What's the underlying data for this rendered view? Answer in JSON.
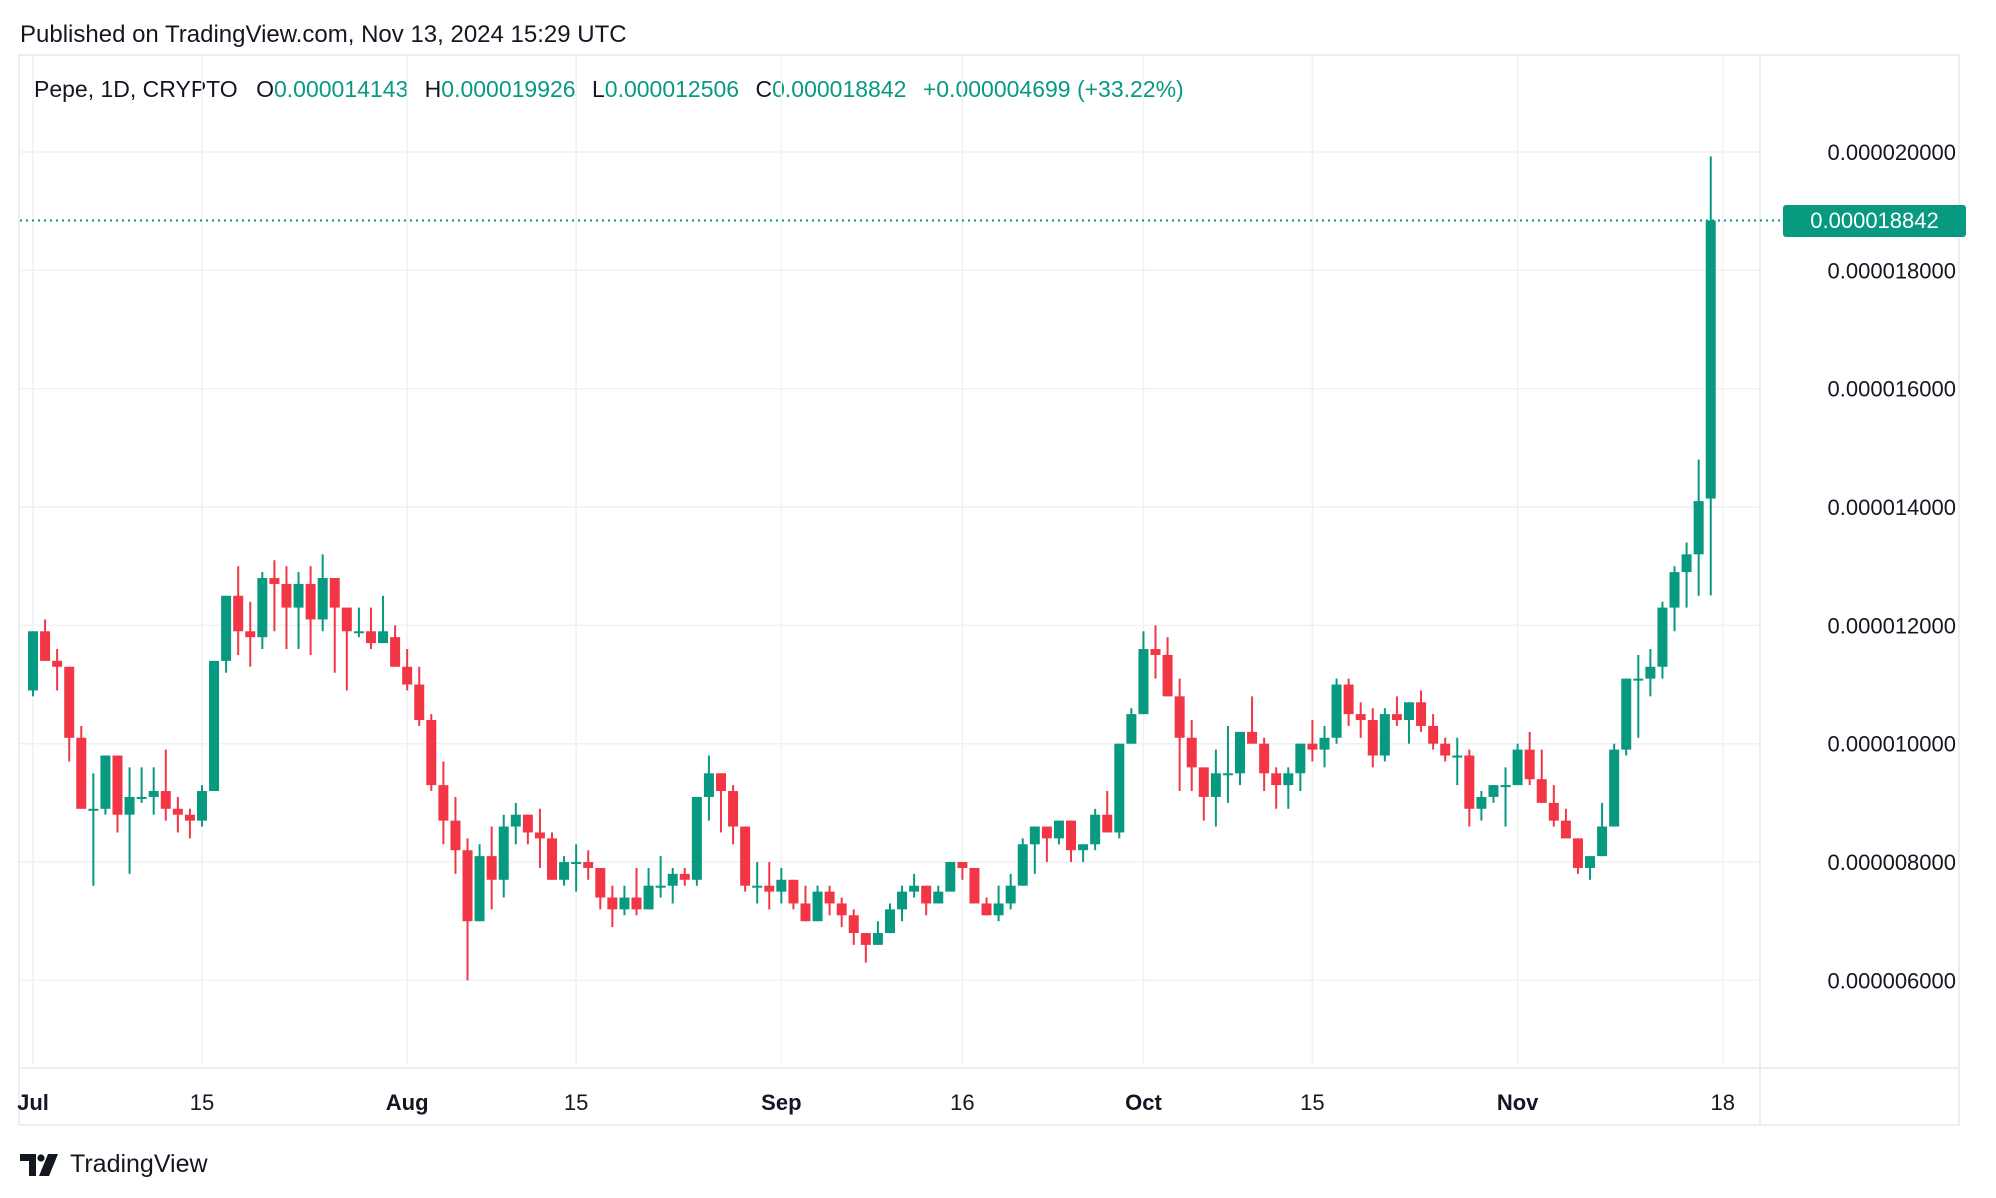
{
  "header": {
    "published": "Published on TradingView.com, Nov 13, 2024 15:29 UTC"
  },
  "legend": {
    "symbol": "Pepe, 1D, CRYPTO",
    "open_label": "O",
    "open": "0.000014143",
    "high_label": "H",
    "high": "0.000019926",
    "low_label": "L",
    "low": "0.000012506",
    "close_label": "C",
    "close": "0.000018842",
    "change": "+0.000004699 (+33.22%)"
  },
  "price_tag": "0.000018842",
  "colors": {
    "up": "#089981",
    "down": "#f23645",
    "grid": "#f0f1f3",
    "text": "#131722"
  },
  "footer": {
    "brand": "TradingView",
    "logo_icon": "tradingview-logo-icon"
  },
  "chart_data": {
    "type": "candlestick",
    "title": "Pepe, 1D, CRYPTO",
    "xlabel": "",
    "ylabel": "",
    "ylim": [
      4.6e-06,
      2.06e-05
    ],
    "y_ticks": [
      "0.000020000",
      "0.000018000",
      "0.000016000",
      "0.000014000",
      "0.000012000",
      "0.000010000",
      "0.000008000",
      "0.000006000"
    ],
    "x_ticks": [
      {
        "label": "Jul",
        "day_index": 0,
        "bold": true
      },
      {
        "label": "15",
        "day_index": 14,
        "bold": false
      },
      {
        "label": "Aug",
        "day_index": 31,
        "bold": true
      },
      {
        "label": "15",
        "day_index": 45,
        "bold": false
      },
      {
        "label": "Sep",
        "day_index": 62,
        "bold": true
      },
      {
        "label": "16",
        "day_index": 77,
        "bold": false
      },
      {
        "label": "Oct",
        "day_index": 92,
        "bold": true
      },
      {
        "label": "15",
        "day_index": 106,
        "bold": false
      },
      {
        "label": "Nov",
        "day_index": 123,
        "bold": true
      },
      {
        "label": "18",
        "day_index": 140,
        "bold": false
      }
    ],
    "unit": "1e-6",
    "start_date": "2024-07-01",
    "ohlc": [
      [
        10.9,
        11.9,
        10.8,
        11.9
      ],
      [
        11.9,
        12.1,
        11.4,
        11.4
      ],
      [
        11.4,
        11.6,
        10.9,
        11.3
      ],
      [
        11.3,
        11.3,
        9.7,
        10.1
      ],
      [
        10.1,
        10.3,
        8.9,
        8.9
      ],
      [
        8.9,
        9.5,
        7.6,
        8.9
      ],
      [
        8.9,
        9.8,
        8.8,
        9.8
      ],
      [
        9.8,
        9.7,
        8.5,
        8.8
      ],
      [
        8.8,
        9.6,
        7.8,
        9.1
      ],
      [
        9.1,
        9.6,
        9.0,
        9.1
      ],
      [
        9.1,
        9.6,
        8.8,
        9.2
      ],
      [
        9.2,
        9.9,
        8.7,
        8.9
      ],
      [
        8.9,
        9.1,
        8.5,
        8.8
      ],
      [
        8.8,
        8.9,
        8.4,
        8.7
      ],
      [
        8.7,
        9.3,
        8.6,
        9.2
      ],
      [
        9.2,
        11.4,
        9.2,
        11.4
      ],
      [
        11.4,
        12.5,
        11.2,
        12.5
      ],
      [
        12.5,
        13.0,
        11.5,
        11.9
      ],
      [
        11.9,
        12.4,
        11.3,
        11.8
      ],
      [
        11.8,
        12.9,
        11.6,
        12.8
      ],
      [
        12.8,
        13.1,
        11.9,
        12.7
      ],
      [
        12.7,
        13.0,
        11.6,
        12.3
      ],
      [
        12.3,
        12.9,
        11.6,
        12.7
      ],
      [
        12.7,
        13.0,
        11.5,
        12.1
      ],
      [
        12.1,
        13.2,
        11.9,
        12.8
      ],
      [
        12.8,
        12.3,
        11.2,
        12.3
      ],
      [
        12.3,
        12.0,
        10.9,
        11.9
      ],
      [
        11.9,
        12.3,
        11.8,
        11.9
      ],
      [
        11.9,
        12.3,
        11.6,
        11.7
      ],
      [
        11.7,
        12.5,
        11.7,
        11.9
      ],
      [
        11.8,
        12.0,
        11.3,
        11.3
      ],
      [
        11.3,
        11.6,
        10.9,
        11.0
      ],
      [
        11.0,
        11.3,
        10.3,
        10.4
      ],
      [
        10.4,
        10.5,
        9.2,
        9.3
      ],
      [
        9.3,
        9.7,
        8.3,
        8.7
      ],
      [
        8.7,
        9.1,
        7.8,
        8.2
      ],
      [
        8.2,
        8.4,
        6.0,
        7.0
      ],
      [
        7.0,
        8.3,
        7.0,
        8.1
      ],
      [
        8.1,
        8.6,
        7.2,
        7.7
      ],
      [
        7.7,
        8.8,
        7.4,
        8.6
      ],
      [
        8.6,
        9.0,
        8.3,
        8.8
      ],
      [
        8.8,
        8.6,
        8.3,
        8.5
      ],
      [
        8.5,
        8.9,
        7.9,
        8.4
      ],
      [
        8.4,
        8.5,
        7.7,
        7.7
      ],
      [
        7.7,
        8.1,
        7.6,
        8.0
      ],
      [
        8.0,
        8.3,
        7.5,
        8.0
      ],
      [
        8.0,
        8.2,
        7.7,
        7.9
      ],
      [
        7.9,
        7.9,
        7.2,
        7.4
      ],
      [
        7.4,
        7.6,
        6.9,
        7.2
      ],
      [
        7.2,
        7.6,
        7.1,
        7.4
      ],
      [
        7.4,
        7.9,
        7.1,
        7.2
      ],
      [
        7.2,
        7.9,
        7.2,
        7.6
      ],
      [
        7.6,
        8.1,
        7.4,
        7.6
      ],
      [
        7.6,
        7.9,
        7.3,
        7.8
      ],
      [
        7.8,
        7.9,
        7.6,
        7.7
      ],
      [
        7.7,
        9.1,
        7.6,
        9.1
      ],
      [
        9.1,
        9.8,
        8.7,
        9.5
      ],
      [
        9.5,
        9.5,
        8.5,
        9.2
      ],
      [
        9.2,
        9.3,
        8.3,
        8.6
      ],
      [
        8.6,
        8.6,
        7.5,
        7.6
      ],
      [
        7.6,
        8.0,
        7.3,
        7.6
      ],
      [
        7.6,
        8.0,
        7.2,
        7.5
      ],
      [
        7.5,
        7.9,
        7.3,
        7.7
      ],
      [
        7.7,
        7.6,
        7.2,
        7.3
      ],
      [
        7.3,
        7.6,
        7.0,
        7.0
      ],
      [
        7.0,
        7.6,
        7.0,
        7.5
      ],
      [
        7.5,
        7.6,
        7.1,
        7.3
      ],
      [
        7.3,
        7.4,
        6.9,
        7.1
      ],
      [
        7.1,
        7.2,
        6.6,
        6.8
      ],
      [
        6.8,
        6.8,
        6.3,
        6.6
      ],
      [
        6.6,
        7.0,
        6.6,
        6.8
      ],
      [
        6.8,
        7.3,
        6.8,
        7.2
      ],
      [
        7.2,
        7.6,
        7.0,
        7.5
      ],
      [
        7.5,
        7.8,
        7.4,
        7.6
      ],
      [
        7.6,
        7.6,
        7.1,
        7.3
      ],
      [
        7.3,
        7.6,
        7.3,
        7.5
      ],
      [
        7.5,
        8.0,
        7.5,
        8.0
      ],
      [
        8.0,
        8.0,
        7.7,
        7.9
      ],
      [
        7.9,
        7.9,
        7.3,
        7.3
      ],
      [
        7.3,
        7.4,
        7.1,
        7.1
      ],
      [
        7.1,
        7.6,
        7.0,
        7.3
      ],
      [
        7.3,
        7.8,
        7.2,
        7.6
      ],
      [
        7.6,
        8.4,
        7.6,
        8.3
      ],
      [
        8.3,
        8.6,
        7.8,
        8.6
      ],
      [
        8.6,
        8.6,
        8.0,
        8.4
      ],
      [
        8.4,
        8.7,
        8.3,
        8.7
      ],
      [
        8.7,
        8.6,
        8.0,
        8.2
      ],
      [
        8.2,
        8.3,
        8.0,
        8.3
      ],
      [
        8.3,
        8.9,
        8.2,
        8.8
      ],
      [
        8.8,
        9.2,
        8.5,
        8.5
      ],
      [
        8.5,
        9.0,
        8.4,
        10.0
      ],
      [
        10.0,
        10.6,
        10.0,
        10.5
      ],
      [
        10.5,
        11.9,
        10.5,
        11.6
      ],
      [
        11.6,
        12.0,
        11.1,
        11.5
      ],
      [
        11.5,
        11.8,
        10.8,
        10.8
      ],
      [
        10.8,
        11.1,
        9.2,
        10.1
      ],
      [
        10.1,
        10.4,
        9.2,
        9.6
      ],
      [
        9.6,
        9.6,
        8.7,
        9.1
      ],
      [
        9.1,
        9.9,
        8.6,
        9.5
      ],
      [
        9.5,
        10.3,
        9.0,
        9.5
      ],
      [
        9.5,
        10.1,
        9.3,
        10.2
      ],
      [
        10.2,
        10.8,
        10.0,
        10.0
      ],
      [
        10.0,
        10.1,
        9.2,
        9.5
      ],
      [
        9.5,
        9.6,
        8.9,
        9.3
      ],
      [
        9.3,
        9.6,
        8.9,
        9.5
      ],
      [
        9.5,
        10.0,
        9.2,
        10.0
      ],
      [
        10.0,
        10.4,
        9.7,
        9.9
      ],
      [
        9.9,
        10.3,
        9.6,
        10.1
      ],
      [
        10.1,
        11.1,
        10.0,
        11.0
      ],
      [
        11.0,
        11.1,
        10.3,
        10.5
      ],
      [
        10.5,
        10.7,
        10.1,
        10.4
      ],
      [
        10.4,
        10.6,
        9.6,
        9.8
      ],
      [
        9.8,
        10.6,
        9.7,
        10.5
      ],
      [
        10.5,
        10.8,
        10.3,
        10.4
      ],
      [
        10.4,
        10.7,
        10.0,
        10.7
      ],
      [
        10.7,
        10.9,
        10.2,
        10.3
      ],
      [
        10.3,
        10.5,
        9.9,
        10.0
      ],
      [
        10.0,
        10.1,
        9.7,
        9.8
      ],
      [
        9.8,
        10.1,
        9.3,
        9.8
      ],
      [
        9.8,
        9.9,
        8.6,
        8.9
      ],
      [
        8.9,
        9.2,
        8.7,
        9.1
      ],
      [
        9.1,
        9.3,
        9.0,
        9.3
      ],
      [
        9.3,
        9.6,
        8.6,
        9.3
      ],
      [
        9.3,
        10.0,
        9.3,
        9.9
      ],
      [
        9.9,
        10.2,
        9.3,
        9.4
      ],
      [
        9.4,
        9.9,
        9.0,
        9.0
      ],
      [
        9.0,
        9.3,
        8.6,
        8.7
      ],
      [
        8.7,
        8.9,
        8.4,
        8.4
      ],
      [
        8.4,
        8.3,
        7.8,
        7.9
      ],
      [
        7.9,
        8.1,
        7.7,
        8.1
      ],
      [
        8.1,
        9.0,
        8.1,
        8.6
      ],
      [
        8.6,
        10.0,
        8.6,
        9.9
      ],
      [
        9.9,
        11.0,
        9.8,
        11.1
      ],
      [
        11.1,
        11.5,
        10.1,
        11.1
      ],
      [
        11.1,
        11.6,
        10.8,
        11.3
      ],
      [
        11.3,
        12.4,
        11.1,
        12.3
      ],
      [
        12.3,
        13.0,
        11.9,
        12.9
      ],
      [
        12.9,
        13.4,
        12.3,
        13.2
      ],
      [
        13.2,
        14.8,
        12.5,
        14.1
      ],
      [
        14.143,
        19.926,
        12.506,
        18.842
      ]
    ]
  }
}
